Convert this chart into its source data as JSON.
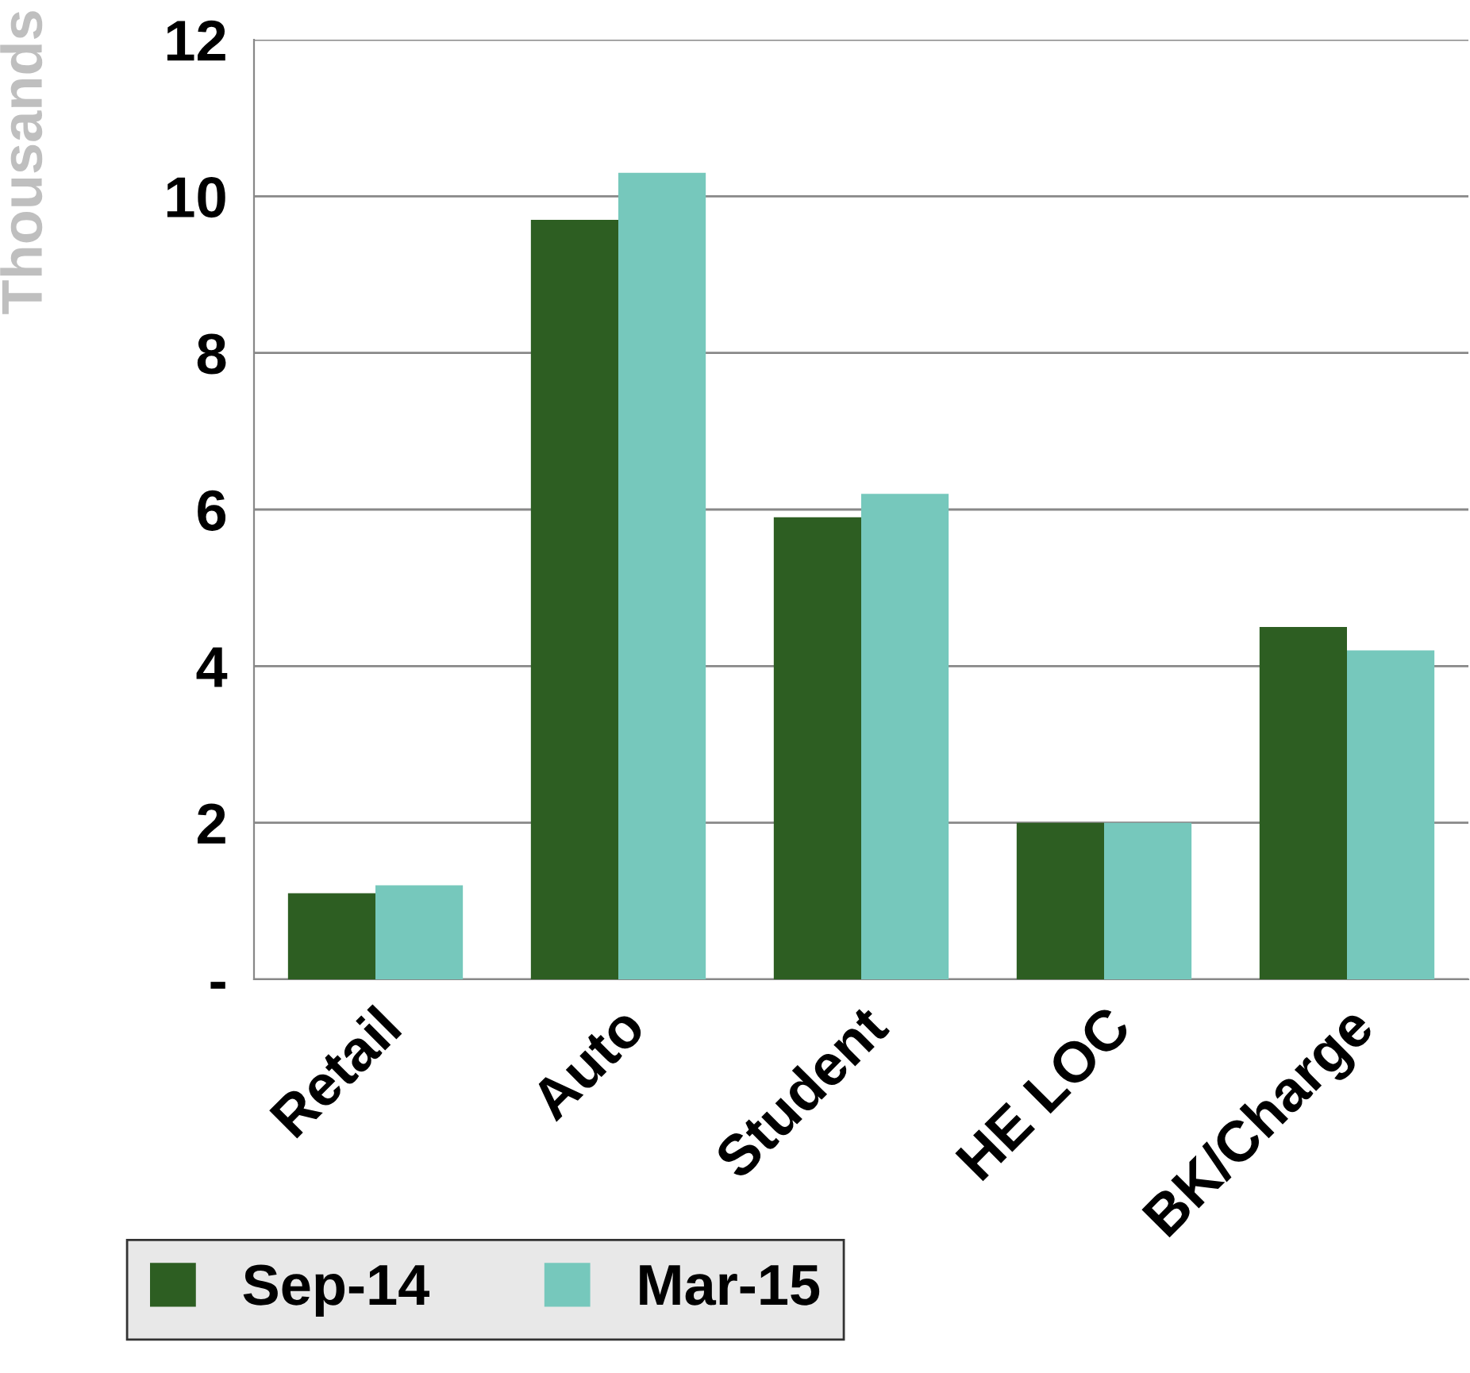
{
  "chart_data": {
    "type": "bar",
    "ylabel": "Thousands",
    "categories": [
      "Retail",
      "Auto",
      "Student",
      "HE LOC",
      "BK/Charge"
    ],
    "series": [
      {
        "name": "Sep-14",
        "color": "#2d5e22",
        "values": [
          1.1,
          9.7,
          5.9,
          2.0,
          4.5
        ]
      },
      {
        "name": "Mar-15",
        "color": "#76c8bc",
        "values": [
          1.2,
          10.3,
          6.2,
          2.0,
          4.2
        ]
      }
    ],
    "ylim": [
      0,
      12
    ],
    "yticks": [
      {
        "value": 0,
        "label": "-"
      },
      2,
      4,
      6,
      8,
      10,
      12
    ],
    "grid": "y",
    "legend": "bottom left"
  }
}
